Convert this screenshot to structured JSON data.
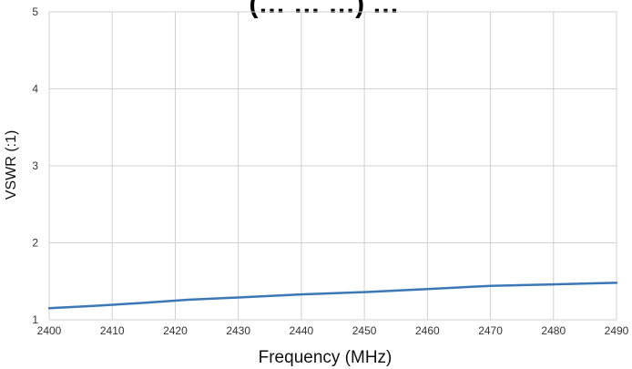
{
  "chart_data": {
    "type": "line",
    "title": "(… … …) …",
    "xlabel": "Frequency (MHz)",
    "ylabel": "VSWR  (:1)",
    "xlim": [
      2400,
      2490
    ],
    "ylim": [
      1,
      5
    ],
    "x_ticks": [
      2400,
      2410,
      2420,
      2430,
      2440,
      2450,
      2460,
      2470,
      2480,
      2490
    ],
    "y_ticks": [
      1,
      2,
      3,
      4,
      5
    ],
    "grid": true,
    "legend": "none",
    "series": [
      {
        "color": "#3b78b5",
        "x": [
          2400,
          2407,
          2415,
          2422,
          2430,
          2440,
          2450,
          2460,
          2470,
          2480,
          2490
        ],
        "y": [
          1.15,
          1.18,
          1.22,
          1.26,
          1.29,
          1.33,
          1.36,
          1.4,
          1.44,
          1.46,
          1.48
        ]
      }
    ]
  }
}
